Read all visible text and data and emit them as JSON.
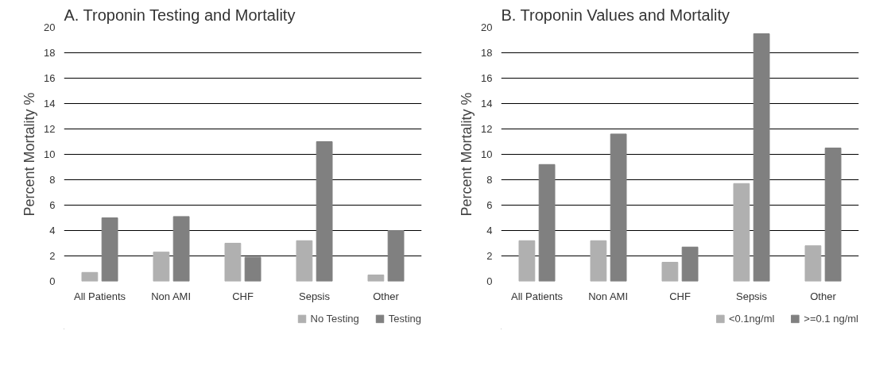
{
  "chart_data": [
    {
      "type": "bar",
      "title": "A. Troponin Testing and Mortality",
      "ylabel": "Percent Mortality %",
      "categories": [
        "All Patients",
        "Non AMI",
        "CHF",
        "Sepsis",
        "Other"
      ],
      "series": [
        {
          "name": "No Testing",
          "color": "#b0b0b0",
          "values": [
            0.7,
            2.3,
            3.0,
            3.2,
            0.5
          ]
        },
        {
          "name": "Testing",
          "color": "#808080",
          "values": [
            5.0,
            5.1,
            1.9,
            11.0,
            4.0
          ]
        }
      ],
      "ylim": [
        0,
        20
      ],
      "yticks": [
        0,
        2,
        4,
        6,
        8,
        10,
        12,
        14,
        16,
        18,
        20
      ],
      "grid": "y",
      "legend": "bottom right"
    },
    {
      "type": "bar",
      "title": "B. Troponin Values and Mortality",
      "ylabel": "Percent Mortality %",
      "categories": [
        "All Patients",
        "Non AMI",
        "CHF",
        "Sepsis",
        "Other"
      ],
      "series": [
        {
          "name": "<0.1ng/ml",
          "color": "#b0b0b0",
          "values": [
            3.2,
            3.2,
            1.5,
            7.7,
            2.8
          ]
        },
        {
          "name": ">=0.1 ng/ml",
          "color": "#808080",
          "values": [
            9.2,
            11.6,
            2.7,
            19.5,
            10.5
          ]
        }
      ],
      "ylim": [
        0,
        20
      ],
      "yticks": [
        0,
        2,
        4,
        6,
        8,
        10,
        12,
        14,
        16,
        18,
        20
      ],
      "grid": "y",
      "legend": "bottom right"
    }
  ]
}
